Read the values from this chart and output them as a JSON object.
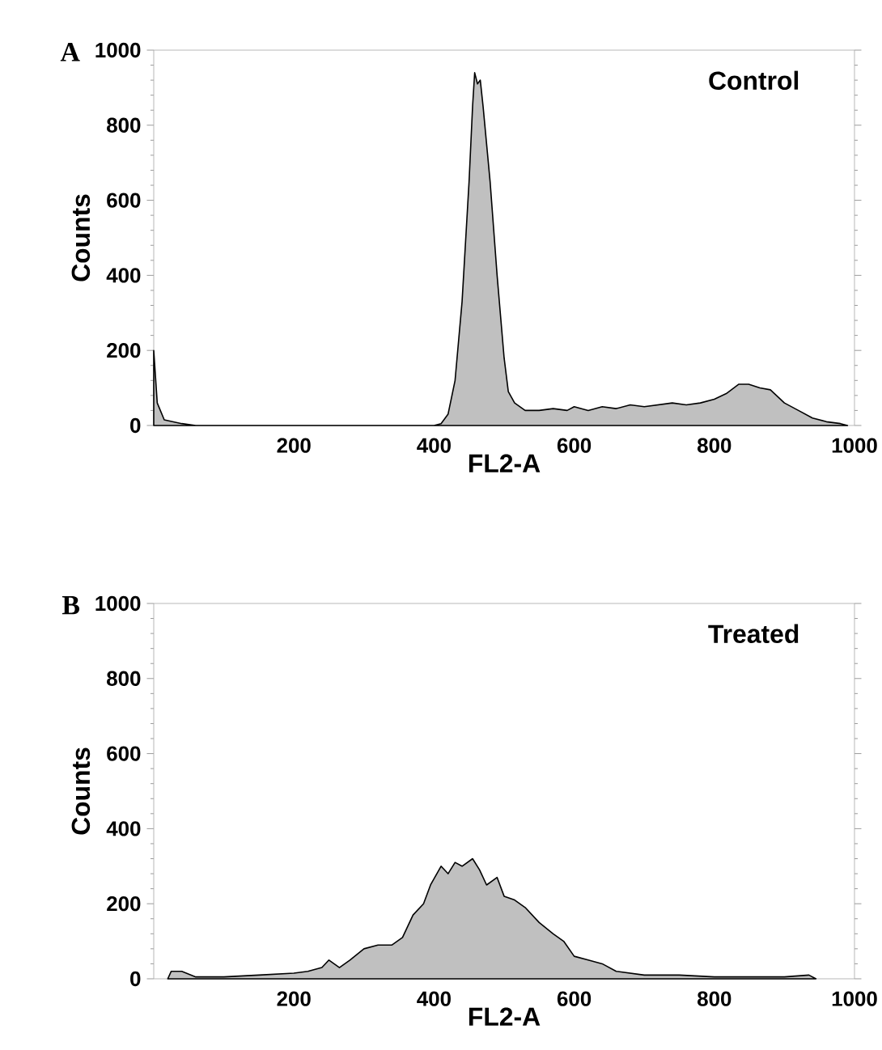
{
  "chart_data": [
    {
      "type": "area",
      "title": "A",
      "xlabel": "FL2-A",
      "ylabel": "Counts",
      "annotations": [
        "Control"
      ],
      "xlim": [
        0,
        1000
      ],
      "ylim": [
        0,
        1000
      ],
      "xticks": [
        200,
        400,
        600,
        800,
        1000
      ],
      "yticks": [
        0,
        200,
        400,
        600,
        800,
        1000
      ],
      "series": [
        {
          "color": "#c0c0c0",
          "x": [
            0,
            5,
            15,
            40,
            60,
            400,
            410,
            420,
            430,
            440,
            450,
            455,
            458,
            462,
            466,
            470,
            480,
            490,
            500,
            506,
            515,
            530,
            550,
            570,
            590,
            600,
            620,
            640,
            660,
            680,
            700,
            720,
            740,
            760,
            780,
            800,
            817,
            835,
            849,
            865,
            880,
            900,
            920,
            940,
            960,
            980,
            990
          ],
          "values": [
            200,
            60,
            15,
            5,
            0,
            0,
            5,
            30,
            120,
            330,
            650,
            850,
            940,
            910,
            920,
            850,
            650,
            400,
            180,
            90,
            60,
            40,
            40,
            45,
            40,
            50,
            40,
            50,
            45,
            55,
            50,
            55,
            60,
            55,
            60,
            70,
            85,
            110,
            110,
            100,
            95,
            60,
            40,
            20,
            10,
            5,
            0
          ]
        }
      ]
    },
    {
      "type": "area",
      "title": "B",
      "xlabel": "FL2-A",
      "ylabel": "Counts",
      "annotations": [
        "Treated"
      ],
      "xlim": [
        0,
        1000
      ],
      "ylim": [
        0,
        1000
      ],
      "xticks": [
        200,
        400,
        600,
        800,
        1000
      ],
      "yticks": [
        0,
        200,
        400,
        600,
        800,
        1000
      ],
      "series": [
        {
          "color": "#c0c0c0",
          "x": [
            20,
            25,
            40,
            60,
            100,
            150,
            200,
            220,
            240,
            250,
            265,
            280,
            300,
            320,
            340,
            355,
            370,
            385,
            395,
            410,
            420,
            430,
            440,
            455,
            465,
            475,
            490,
            500,
            515,
            530,
            550,
            570,
            585,
            600,
            620,
            640,
            660,
            680,
            700,
            750,
            800,
            850,
            900,
            935,
            945
          ],
          "values": [
            0,
            20,
            20,
            5,
            5,
            10,
            15,
            20,
            30,
            50,
            30,
            50,
            80,
            90,
            90,
            110,
            170,
            200,
            250,
            300,
            280,
            310,
            300,
            320,
            290,
            250,
            270,
            220,
            210,
            190,
            150,
            120,
            100,
            60,
            50,
            40,
            20,
            15,
            10,
            10,
            5,
            5,
            5,
            10,
            0
          ]
        }
      ]
    }
  ]
}
